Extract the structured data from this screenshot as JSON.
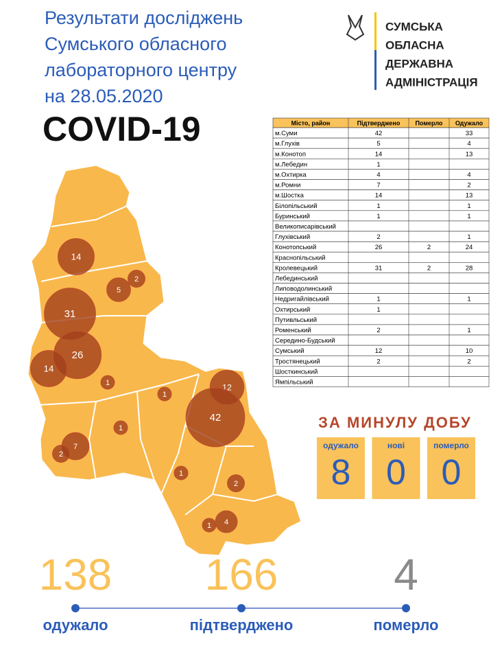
{
  "header": {
    "title_lines": [
      "Результати досліджень",
      "Сумського обласного",
      "лабораторного центру",
      "на 28.05.2020"
    ],
    "subtitle": "COVID-19"
  },
  "logo": {
    "lines": [
      "СУМСЬКА",
      "ОБЛАСНА",
      "ДЕРЖАВНА",
      "АДМІНІСТРАЦІЯ"
    ]
  },
  "table": {
    "columns": [
      "Місто, район",
      "Підтверджено",
      "Померло",
      "Одужало"
    ],
    "rows": [
      [
        "м.Суми",
        42,
        null,
        33
      ],
      [
        "м.Глухів",
        5,
        null,
        4
      ],
      [
        "м.Конотоп",
        14,
        null,
        13
      ],
      [
        "м.Лебедин",
        1,
        null,
        null
      ],
      [
        "м.Охтирка",
        4,
        null,
        4
      ],
      [
        "м.Ромни",
        7,
        null,
        2
      ],
      [
        "м.Шостка",
        14,
        null,
        13
      ],
      [
        "Білопільський",
        1,
        null,
        1
      ],
      [
        "Буринський",
        1,
        null,
        1
      ],
      [
        "Великописарівський",
        null,
        null,
        null
      ],
      [
        "Глухівський",
        2,
        null,
        1
      ],
      [
        "Конотопський",
        26,
        2,
        24
      ],
      [
        "Краснопільський",
        null,
        null,
        null
      ],
      [
        "Кролевецький",
        31,
        2,
        28
      ],
      [
        "Лебединський",
        null,
        null,
        null
      ],
      [
        "Липоводолинський",
        null,
        null,
        null
      ],
      [
        "Недригайлівський",
        1,
        null,
        1
      ],
      [
        "Охтирський",
        1,
        null,
        null
      ],
      [
        "Путивльський",
        null,
        null,
        null
      ],
      [
        "Роменський",
        2,
        null,
        1
      ],
      [
        "Середино-Будський",
        null,
        null,
        null
      ],
      [
        "Сумський",
        12,
        null,
        10
      ],
      [
        "Тростянецький",
        2,
        null,
        2
      ],
      [
        "Шосткинський",
        null,
        null,
        null
      ],
      [
        "Ямпільський",
        null,
        null,
        null
      ]
    ]
  },
  "map": {
    "bubbles": [
      14,
      5,
      2,
      31,
      26,
      14,
      1,
      1,
      12,
      42,
      1,
      7,
      2,
      1,
      2,
      4,
      1
    ]
  },
  "daily": {
    "title": "ЗА МИНУЛУ ДОБУ",
    "items": [
      {
        "label": "одужало",
        "value": 8
      },
      {
        "label": "нові",
        "value": 0
      },
      {
        "label": "померло",
        "value": 0
      }
    ]
  },
  "totals": [
    {
      "value": 138,
      "label": "одужало"
    },
    {
      "value": 166,
      "label": "підтверджено"
    },
    {
      "value": 4,
      "label": "померло"
    }
  ]
}
